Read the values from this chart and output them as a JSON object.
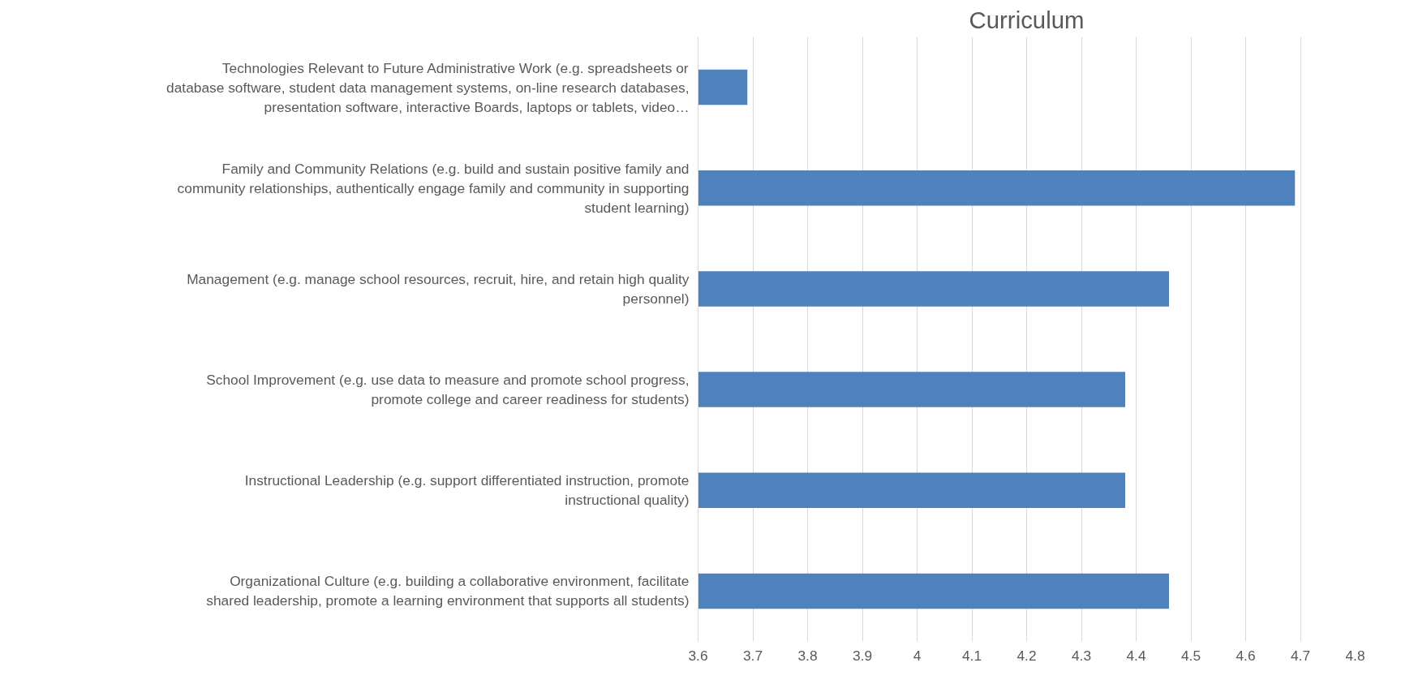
{
  "chart_data": {
    "type": "bar",
    "orientation": "horizontal",
    "title": "Curriculum",
    "categories": [
      "Technologies Relevant to Future Administrative Work (e.g. spreadsheets or database software, student data management systems, on-line research databases, presentation software, interactive Boards, laptops or tablets, video…",
      "Family and Community Relations (e.g. build and sustain positive family and community relationships, authentically engage family and community in supporting student learning)",
      "Management (e.g. manage school resources, recruit, hire, and retain high quality personnel)",
      "School Improvement (e.g. use data to measure and promote school progress, promote college and career readiness for students)",
      "Instructional Leadership (e.g. support differentiated instruction, promote instructional quality)",
      "Organizational Culture (e.g. building a collaborative environment, facilitate shared leadership, promote a learning environment that supports all students)"
    ],
    "values": [
      3.69,
      4.69,
      4.46,
      4.38,
      4.38,
      4.46
    ],
    "color": "#4f81bd",
    "xlim": [
      3.6,
      4.8
    ],
    "xticks": [
      3.6,
      3.7,
      3.8,
      3.9,
      4,
      4.1,
      4.2,
      4.3,
      4.4,
      4.5,
      4.6,
      4.7,
      4.8
    ],
    "grid": "x"
  }
}
